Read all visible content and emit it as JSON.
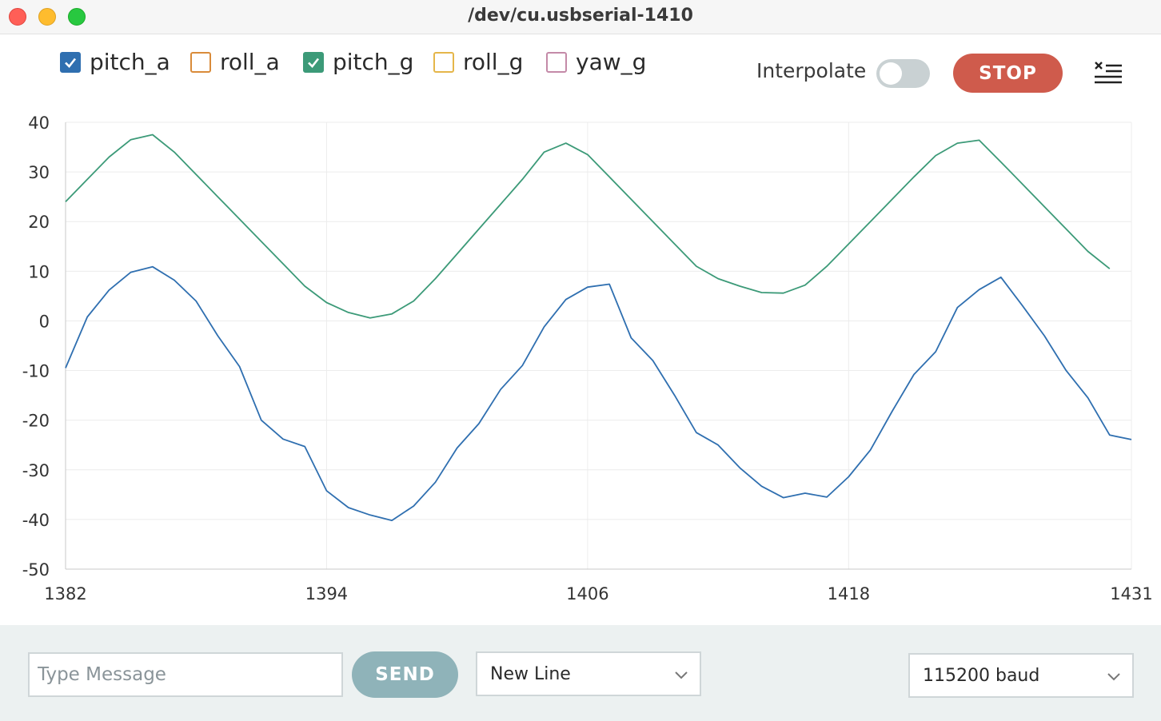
{
  "window": {
    "title": "/dev/cu.usbserial-1410"
  },
  "legend": {
    "items": [
      {
        "label": "pitch_a",
        "checked": true,
        "color": "#2f6fb0"
      },
      {
        "label": "roll_a",
        "checked": false,
        "color": "#d98b3a"
      },
      {
        "label": "pitch_g",
        "checked": true,
        "color": "#3c9a78"
      },
      {
        "label": "roll_g",
        "checked": false,
        "color": "#e5b64a"
      },
      {
        "label": "yaw_g",
        "checked": false,
        "color": "#c48aa8"
      }
    ]
  },
  "toolbar": {
    "interpolate_label": "Interpolate",
    "interpolate_on": false,
    "stop_label": "STOP",
    "clear_icon": "clear-list-icon"
  },
  "footer": {
    "message_placeholder": "Type Message",
    "send_label": "SEND",
    "line_ending": "New Line",
    "baud_rate": "115200 baud"
  },
  "colors": {
    "stop": "#cf5b4c",
    "send": "#8fb3b9",
    "pitch_a": "#2f6fb0",
    "pitch_g": "#3c9a78"
  },
  "chart_data": {
    "type": "line",
    "xlim": [
      1382,
      1431
    ],
    "ylim": [
      -50,
      40
    ],
    "xticks": [
      1382,
      1394,
      1406,
      1418,
      1431
    ],
    "yticks": [
      40,
      30,
      20,
      10,
      0,
      -10,
      -20,
      -30,
      -40,
      -50
    ],
    "grid": true,
    "series": [
      {
        "name": "pitch_g",
        "color": "#3c9a78",
        "points": [
          [
            1382,
            24
          ],
          [
            1383,
            28.5
          ],
          [
            1384,
            33
          ],
          [
            1385,
            36.5
          ],
          [
            1386,
            37.5
          ],
          [
            1387,
            34
          ],
          [
            1388,
            29.5
          ],
          [
            1389,
            25
          ],
          [
            1390,
            20.5
          ],
          [
            1391,
            16
          ],
          [
            1392,
            11.5
          ],
          [
            1393,
            7
          ],
          [
            1394,
            3.7
          ],
          [
            1395,
            1.7
          ],
          [
            1396,
            0.6
          ],
          [
            1397,
            1.4
          ],
          [
            1398,
            4
          ],
          [
            1399,
            8.5
          ],
          [
            1400,
            13.5
          ],
          [
            1401,
            18.5
          ],
          [
            1402,
            23.5
          ],
          [
            1403,
            28.5
          ],
          [
            1404,
            34
          ],
          [
            1405,
            35.8
          ],
          [
            1406,
            33.5
          ],
          [
            1407,
            29
          ],
          [
            1408,
            24.5
          ],
          [
            1409,
            20
          ],
          [
            1410,
            15.5
          ],
          [
            1411,
            11
          ],
          [
            1412,
            8.5
          ],
          [
            1413,
            7
          ],
          [
            1414,
            5.7
          ],
          [
            1415,
            5.6
          ],
          [
            1416,
            7.2
          ],
          [
            1417,
            11
          ],
          [
            1418,
            15.5
          ],
          [
            1419,
            20
          ],
          [
            1420,
            24.5
          ],
          [
            1421,
            29
          ],
          [
            1422,
            33.3
          ],
          [
            1423,
            35.8
          ],
          [
            1424,
            36.4
          ],
          [
            1425,
            32
          ],
          [
            1426,
            27.5
          ],
          [
            1427,
            23
          ],
          [
            1428,
            18.5
          ],
          [
            1429,
            14
          ],
          [
            1430,
            10.5
          ]
        ]
      },
      {
        "name": "pitch_a",
        "color": "#2f6fb0",
        "points": [
          [
            1382,
            -9.5
          ],
          [
            1383,
            0.8
          ],
          [
            1384,
            6.2
          ],
          [
            1385,
            9.8
          ],
          [
            1386,
            10.9
          ],
          [
            1387,
            8.2
          ],
          [
            1388,
            4
          ],
          [
            1389,
            -3
          ],
          [
            1390,
            -9.2
          ],
          [
            1391,
            -20
          ],
          [
            1392,
            -23.8
          ],
          [
            1393,
            -25.3
          ],
          [
            1394,
            -34.2
          ],
          [
            1395,
            -37.6
          ],
          [
            1396,
            -39.1
          ],
          [
            1397,
            -40.2
          ],
          [
            1398,
            -37.3
          ],
          [
            1399,
            -32.5
          ],
          [
            1400,
            -25.6
          ],
          [
            1401,
            -20.7
          ],
          [
            1402,
            -13.8
          ],
          [
            1403,
            -9
          ],
          [
            1404,
            -1.2
          ],
          [
            1405,
            4.3
          ],
          [
            1406,
            6.8
          ],
          [
            1407,
            7.4
          ],
          [
            1408,
            -3.4
          ],
          [
            1409,
            -8
          ],
          [
            1410,
            -15
          ],
          [
            1411,
            -22.5
          ],
          [
            1412,
            -25
          ],
          [
            1413,
            -29.6
          ],
          [
            1414,
            -33.3
          ],
          [
            1415,
            -35.6
          ],
          [
            1416,
            -34.7
          ],
          [
            1417,
            -35.5
          ],
          [
            1418,
            -31.4
          ],
          [
            1419,
            -26
          ],
          [
            1420,
            -18.2
          ],
          [
            1421,
            -10.8
          ],
          [
            1422,
            -6.2
          ],
          [
            1423,
            2.7
          ],
          [
            1424,
            6.3
          ],
          [
            1425,
            8.8
          ],
          [
            1426,
            3
          ],
          [
            1427,
            -3
          ],
          [
            1428,
            -10
          ],
          [
            1429,
            -15.5
          ],
          [
            1430,
            -23
          ],
          [
            1431,
            -23.9
          ]
        ]
      }
    ]
  }
}
